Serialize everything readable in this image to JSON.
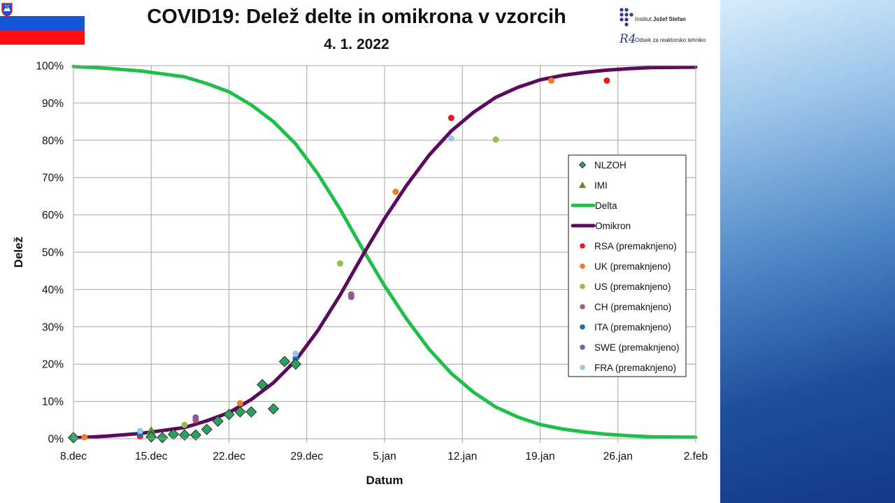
{
  "header": {
    "title": "COVID19: Delež delte in omikrona v vzorcih",
    "subtitle": "4. 1. 2022",
    "institute_prefix": "Institut",
    "institute_name": "Jožef Stefan",
    "department_mark": "R4",
    "department": "Odsek za reaktorsko tehniko"
  },
  "colors": {
    "delta": "#1fbf4a",
    "omikron": "#5c0a5e",
    "nlzoh": "#2f9e5e",
    "imi": "#5a8a2a",
    "rsa": "#e41a1c",
    "uk": "#f07a28",
    "us": "#8ec050",
    "ch": "#b85a5a",
    "ita": "#1f6bb5",
    "swe": "#8a5aa8",
    "fra": "#9cc8e6",
    "grid": "#a6a6a6",
    "slide_gradient_dark": "#123a86"
  },
  "chart_data": {
    "type": "scatter",
    "xlabel": "Datum",
    "ylabel": "Delež",
    "xlim": [
      "2021-12-08",
      "2022-02-02"
    ],
    "ylim": [
      0,
      100
    ],
    "y_unit": "%",
    "x_ticks": [
      "2021-12-08",
      "2021-12-15",
      "2021-12-22",
      "2021-12-29",
      "2022-01-05",
      "2022-01-12",
      "2022-01-19",
      "2022-01-26",
      "2022-02-02"
    ],
    "x_tick_labels": [
      "8.dec",
      "15.dec",
      "22.dec",
      "29.dec",
      "5.jan",
      "12.jan",
      "19.jan",
      "26.jan",
      "2.feb"
    ],
    "y_ticks": [
      0,
      10,
      20,
      30,
      40,
      50,
      60,
      70,
      80,
      90,
      100
    ],
    "y_tick_labels": [
      "0%",
      "10%",
      "20%",
      "30%",
      "40%",
      "50%",
      "60%",
      "70%",
      "80%",
      "90%",
      "100%"
    ],
    "grid": true,
    "legend": {
      "placement": "right",
      "entries": [
        "NLZOH",
        "IMI",
        "Delta",
        "Omikron",
        "RSA (premaknjeno)",
        "UK (premaknjeno)",
        "US (premaknjeno)",
        "CH (premaknjeno)",
        "ITA (premaknjeno)",
        "SWE (premaknjeno)",
        "FRA (premaknjeno)"
      ]
    },
    "series": [
      {
        "name": "NLZOH",
        "kind": "points",
        "marker": "diamond",
        "color_key": "nlzoh",
        "points": [
          [
            "2021-12-08",
            0.3
          ],
          [
            "2021-12-15",
            0.5
          ],
          [
            "2021-12-16",
            0.3
          ],
          [
            "2021-12-17",
            1.2
          ],
          [
            "2021-12-18",
            1.0
          ],
          [
            "2021-12-19",
            1.0
          ],
          [
            "2021-12-20",
            2.5
          ],
          [
            "2021-12-21",
            4.7
          ],
          [
            "2021-12-22",
            6.5
          ],
          [
            "2021-12-23",
            7.2
          ],
          [
            "2021-12-24",
            7.2
          ],
          [
            "2021-12-25",
            14.5
          ],
          [
            "2021-12-26",
            8.0
          ],
          [
            "2021-12-27",
            20.7
          ],
          [
            "2021-12-28",
            20.0
          ]
        ]
      },
      {
        "name": "IMI",
        "kind": "points",
        "marker": "triangle",
        "color_key": "imi",
        "points": [
          [
            "2021-12-08",
            0.8
          ],
          [
            "2021-12-15",
            2.2
          ]
        ]
      },
      {
        "name": "Delta",
        "kind": "line",
        "color_key": "delta",
        "points": [
          [
            "2021-12-08",
            99.8
          ],
          [
            "2021-12-11",
            99.3
          ],
          [
            "2021-12-14",
            98.6
          ],
          [
            "2021-12-16",
            97.8
          ],
          [
            "2021-12-18",
            97.0
          ],
          [
            "2021-12-20",
            95.2
          ],
          [
            "2021-12-22",
            93.0
          ],
          [
            "2021-12-24",
            89.5
          ],
          [
            "2021-12-26",
            85.0
          ],
          [
            "2021-12-28",
            79.0
          ],
          [
            "2021-12-30",
            71.0
          ],
          [
            "2022-01-01",
            61.5
          ],
          [
            "2022-01-03",
            51.0
          ],
          [
            "2022-01-05",
            41.0
          ],
          [
            "2022-01-07",
            32.0
          ],
          [
            "2022-01-09",
            24.0
          ],
          [
            "2022-01-11",
            17.5
          ],
          [
            "2022-01-13",
            12.5
          ],
          [
            "2022-01-15",
            8.5
          ],
          [
            "2022-01-17",
            5.8
          ],
          [
            "2022-01-19",
            3.8
          ],
          [
            "2022-01-21",
            2.6
          ],
          [
            "2022-01-23",
            1.8
          ],
          [
            "2022-01-25",
            1.2
          ],
          [
            "2022-01-27",
            0.8
          ],
          [
            "2022-01-29",
            0.5
          ],
          [
            "2022-02-02",
            0.4
          ]
        ]
      },
      {
        "name": "Omikron",
        "kind": "line",
        "color_key": "omikron",
        "points": [
          [
            "2021-12-08",
            0.2
          ],
          [
            "2021-12-11",
            0.7
          ],
          [
            "2021-12-14",
            1.4
          ],
          [
            "2021-12-16",
            2.2
          ],
          [
            "2021-12-18",
            3.0
          ],
          [
            "2021-12-20",
            4.8
          ],
          [
            "2021-12-22",
            7.0
          ],
          [
            "2021-12-24",
            10.5
          ],
          [
            "2021-12-26",
            15.0
          ],
          [
            "2021-12-28",
            21.0
          ],
          [
            "2021-12-30",
            29.0
          ],
          [
            "2022-01-01",
            38.5
          ],
          [
            "2022-01-03",
            49.0
          ],
          [
            "2022-01-05",
            59.0
          ],
          [
            "2022-01-07",
            68.0
          ],
          [
            "2022-01-09",
            76.0
          ],
          [
            "2022-01-11",
            82.5
          ],
          [
            "2022-01-13",
            87.5
          ],
          [
            "2022-01-15",
            91.5
          ],
          [
            "2022-01-17",
            94.2
          ],
          [
            "2022-01-19",
            96.2
          ],
          [
            "2022-01-21",
            97.4
          ],
          [
            "2022-01-23",
            98.2
          ],
          [
            "2022-01-25",
            98.8
          ],
          [
            "2022-01-27",
            99.2
          ],
          [
            "2022-01-29",
            99.5
          ],
          [
            "2022-02-02",
            99.6
          ]
        ]
      },
      {
        "name": "RSA (premaknjeno)",
        "kind": "points",
        "marker": "circle",
        "color_key": "rsa",
        "points": [
          [
            "2021-12-14",
            0.6
          ],
          [
            "2022-01-11",
            86.0
          ],
          [
            "2022-01-25",
            96.0
          ]
        ]
      },
      {
        "name": "UK (premaknjeno)",
        "kind": "points",
        "marker": "circle",
        "color_key": "uk",
        "points": [
          [
            "2021-12-09",
            0.4
          ],
          [
            "2021-12-23",
            9.5
          ],
          [
            "2022-01-06",
            66.2
          ],
          [
            "2022-01-20",
            96.0
          ]
        ]
      },
      {
        "name": "US (premaknjeno)",
        "kind": "points",
        "marker": "circle",
        "color_key": "us",
        "points": [
          [
            "2021-12-18",
            3.7
          ],
          [
            "2022-01-01",
            47.0
          ],
          [
            "2022-01-15",
            80.2
          ]
        ]
      },
      {
        "name": "CH (premaknjeno)",
        "kind": "points",
        "marker": "circle",
        "color_key": "ch",
        "points": [
          [
            "2021-12-19",
            5.0
          ],
          [
            "2022-01-02",
            38.7
          ]
        ]
      },
      {
        "name": "ITA (premaknjeno)",
        "kind": "points",
        "marker": "circle",
        "color_key": "ita",
        "points": [
          [
            "2021-12-14",
            1.2
          ],
          [
            "2021-12-28",
            21.5
          ]
        ]
      },
      {
        "name": "SWE (premaknjeno)",
        "kind": "points",
        "marker": "circle",
        "color_key": "swe",
        "points": [
          [
            "2021-12-19",
            5.7
          ],
          [
            "2022-01-02",
            38.0
          ]
        ]
      },
      {
        "name": "FRA (premaknjeno)",
        "kind": "points",
        "marker": "circle",
        "color_key": "fra",
        "points": [
          [
            "2021-12-14",
            2.1
          ],
          [
            "2021-12-28",
            22.8
          ],
          [
            "2022-01-11",
            80.5
          ]
        ]
      }
    ]
  }
}
